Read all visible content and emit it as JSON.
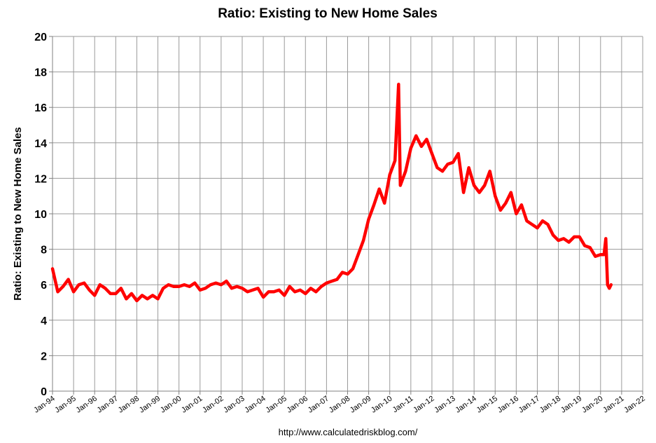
{
  "chart_data": {
    "type": "line",
    "title": "Ratio: Existing to New Home Sales",
    "xlabel": "",
    "ylabel": "Ratio: Existing to New Home Sales",
    "ylim": [
      0,
      20
    ],
    "yticks": [
      0,
      2,
      4,
      6,
      8,
      10,
      12,
      14,
      16,
      18,
      20
    ],
    "xlim": [
      "Jan-94",
      "Jan-22"
    ],
    "xticks": [
      "Jan-94",
      "Jan-95",
      "Jan-96",
      "Jan-97",
      "Jan-98",
      "Jan-99",
      "Jan-00",
      "Jan-01",
      "Jan-02",
      "Jan-03",
      "Jan-04",
      "Jan-05",
      "Jan-06",
      "Jan-07",
      "Jan-08",
      "Jan-09",
      "Jan-10",
      "Jan-11",
      "Jan-12",
      "Jan-13",
      "Jan-14",
      "Jan-15",
      "Jan-16",
      "Jan-17",
      "Jan-18",
      "Jan-19",
      "Jan-20",
      "Jan-21",
      "Jan-22"
    ],
    "grid": true,
    "line_color": "#ff0000",
    "series": [
      {
        "x": [
          "Jan-94",
          "Apr-94",
          "Jul-94",
          "Oct-94",
          "Jan-95",
          "Apr-95",
          "Jul-95",
          "Oct-95",
          "Jan-96",
          "Apr-96",
          "Jul-96",
          "Oct-96",
          "Jan-97",
          "Apr-97",
          "Jul-97",
          "Oct-97",
          "Jan-98",
          "Apr-98",
          "Jul-98",
          "Oct-98",
          "Jan-99",
          "Apr-99",
          "Jul-99",
          "Oct-99",
          "Jan-00",
          "Apr-00",
          "Jul-00",
          "Oct-00",
          "Jan-01",
          "Apr-01",
          "Jul-01",
          "Oct-01",
          "Jan-02",
          "Apr-02",
          "Jul-02",
          "Oct-02",
          "Jan-03",
          "Apr-03",
          "Jul-03",
          "Oct-03",
          "Jan-04",
          "Apr-04",
          "Jul-04",
          "Oct-04",
          "Jan-05",
          "Apr-05",
          "Jul-05",
          "Oct-05",
          "Jan-06",
          "Apr-06",
          "Jul-06",
          "Oct-06",
          "Jan-07",
          "Apr-07",
          "Jul-07",
          "Oct-07",
          "Jan-08",
          "Apr-08",
          "Jul-08",
          "Oct-08",
          "Jan-09",
          "Apr-09",
          "Jul-09",
          "Oct-09",
          "Jan-10",
          "Apr-10",
          "Jun-10",
          "Jul-10",
          "Oct-10",
          "Jan-11",
          "Apr-11",
          "Jul-11",
          "Oct-11",
          "Jan-12",
          "Apr-12",
          "Jul-12",
          "Oct-12",
          "Jan-13",
          "Apr-13",
          "Jul-13",
          "Oct-13",
          "Jan-14",
          "Apr-14",
          "Jul-14",
          "Oct-14",
          "Jan-15",
          "Apr-15",
          "Jul-15",
          "Oct-15",
          "Jan-16",
          "Apr-16",
          "Jul-16",
          "Oct-16",
          "Jan-17",
          "Apr-17",
          "Jul-17",
          "Oct-17",
          "Jan-18",
          "Apr-18",
          "Jul-18",
          "Oct-18",
          "Jan-19",
          "Apr-19",
          "Jul-19",
          "Oct-19",
          "Jan-20",
          "Mar-20",
          "Apr-20",
          "May-20",
          "Jun-20",
          "Jul-20"
        ],
        "values": [
          6.9,
          5.6,
          5.9,
          6.3,
          5.6,
          6.0,
          6.1,
          5.7,
          5.4,
          6.0,
          5.8,
          5.5,
          5.5,
          5.8,
          5.2,
          5.5,
          5.1,
          5.4,
          5.2,
          5.4,
          5.2,
          5.8,
          6.0,
          5.9,
          5.9,
          6.0,
          5.9,
          6.1,
          5.7,
          5.8,
          6.0,
          6.1,
          6.0,
          6.2,
          5.8,
          5.9,
          5.8,
          5.6,
          5.7,
          5.8,
          5.3,
          5.6,
          5.6,
          5.7,
          5.4,
          5.9,
          5.6,
          5.7,
          5.5,
          5.8,
          5.6,
          5.9,
          6.1,
          6.2,
          6.3,
          6.7,
          6.6,
          6.9,
          7.7,
          8.5,
          9.7,
          10.5,
          11.4,
          10.6,
          12.2,
          13.0,
          17.3,
          11.6,
          12.4,
          13.7,
          14.4,
          13.8,
          14.2,
          13.4,
          12.6,
          12.4,
          12.8,
          12.9,
          13.4,
          11.2,
          12.6,
          11.6,
          11.2,
          11.6,
          12.4,
          11.0,
          10.2,
          10.6,
          11.2,
          10.0,
          10.5,
          9.6,
          9.4,
          9.2,
          9.6,
          9.4,
          8.8,
          8.5,
          8.6,
          8.4,
          8.7,
          8.7,
          8.2,
          8.1,
          7.6,
          7.7,
          7.7,
          8.6,
          6.0,
          5.8,
          6.0
        ]
      }
    ],
    "source_note": "http://www.calculatedriskblog.com/"
  }
}
